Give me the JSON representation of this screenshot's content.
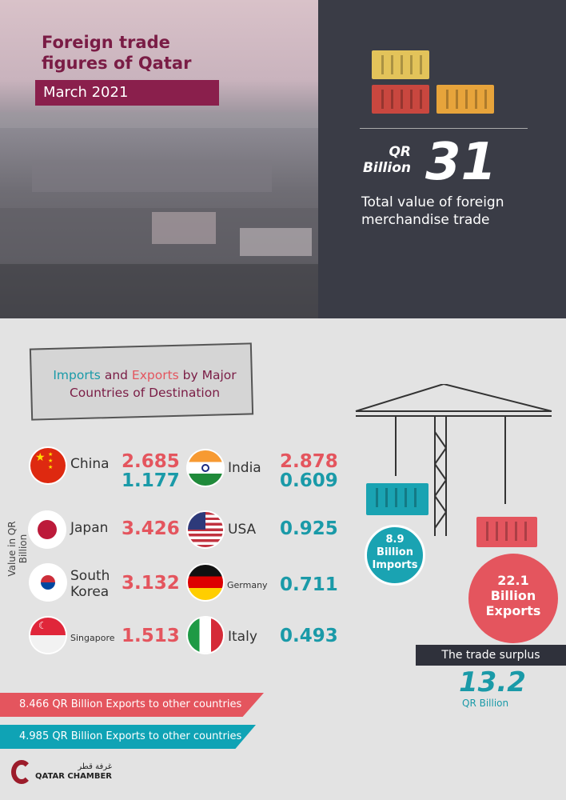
{
  "header": {
    "title_line1": "Foreign trade",
    "title_line2": "figures of Qatar",
    "date": "March 2021"
  },
  "total": {
    "unit_line1": "QR",
    "unit_line2": "Billion",
    "value": "31",
    "description": "Total value of foreign merchandise trade"
  },
  "section": {
    "heading_imports": "Imports",
    "heading_and": " and ",
    "heading_exports": "Exports",
    "heading_rest1": " by Major",
    "heading_rest2": "Countries of Destination",
    "axis_label": "Value in QR Billion"
  },
  "countries": [
    {
      "name": "China",
      "exports": "2.685",
      "imports": "1.177",
      "flag": "china-flag"
    },
    {
      "name": "India",
      "exports": "2.878",
      "imports": "0.609",
      "flag": "india-flag"
    },
    {
      "name": "Japan",
      "exports": "3.426",
      "flag": "japan-flag"
    },
    {
      "name": "USA",
      "imports": "0.925",
      "flag": "usa-flag"
    },
    {
      "name_line1": "South",
      "name_line2": "Korea",
      "exports": "3.132",
      "flag": "south-korea-flag"
    },
    {
      "name": "Germany",
      "imports": "0.711",
      "flag": "germany-flag"
    },
    {
      "name": "Singapore",
      "exports": "1.513",
      "flag": "singapore-flag"
    },
    {
      "name": "Italy",
      "imports": "0.493",
      "flag": "italy-flag"
    }
  ],
  "banners": {
    "exports_other": "8.466 QR Billion Exports to other countries",
    "imports_other": "4.985 QR Billion Exports to other countries"
  },
  "imports_total": {
    "value": "8.9",
    "line2": "Billion",
    "line3": "Imports"
  },
  "exports_total": {
    "value": "22.1",
    "line2": "Billion",
    "line3": "Exports"
  },
  "surplus": {
    "label": "The trade surplus",
    "value": "13.2",
    "unit": "QR Billion"
  },
  "logo": {
    "arabic": "غرفة قطر",
    "name": "QATAR CHAMBER"
  },
  "colors": {
    "exports": "#e4555e",
    "imports": "#1a9aa8",
    "maroon": "#8a1f4c",
    "dark": "#3a3c46"
  }
}
